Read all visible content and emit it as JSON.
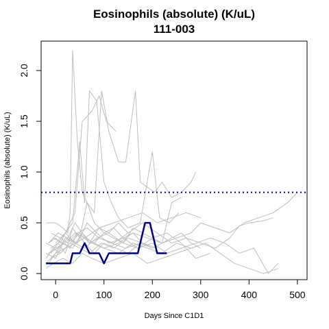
{
  "chart_data": {
    "type": "line",
    "title": "Eosinophils (absolute) (K/uL)",
    "subtitle": "111-003",
    "xlabel": "Days Since C1D1",
    "ylabel": "Eosinophils (absolute) (K/uL)",
    "xlim": [
      -30,
      520
    ],
    "ylim": [
      -0.06,
      2.29
    ],
    "x_ticks": [
      0,
      100,
      200,
      300,
      400,
      500
    ],
    "x_tick_labels": [
      "0",
      "100",
      "200",
      "300",
      "400",
      "500"
    ],
    "y_ticks": [
      0.0,
      0.5,
      1.0,
      1.5,
      2.0
    ],
    "y_tick_labels": [
      "0.0",
      "0.5",
      "1.0",
      "1.5",
      "2.0"
    ],
    "reference_line": {
      "y": 0.8,
      "style": "dotted",
      "color": "#000080"
    },
    "highlight_color": "#000080",
    "background_color": "#bebebe",
    "highlight_series": {
      "x": [
        -20,
        30,
        35,
        50,
        60,
        70,
        90,
        100,
        110,
        140,
        170,
        185,
        195,
        210,
        230
      ],
      "values": [
        0.1,
        0.1,
        0.2,
        0.2,
        0.3,
        0.2,
        0.2,
        0.1,
        0.2,
        0.2,
        0.2,
        0.5,
        0.5,
        0.2,
        0.2
      ]
    },
    "background_series": [
      {
        "x": [
          -20,
          0,
          15,
          25,
          30,
          35,
          45,
          55,
          65,
          80,
          95,
          110,
          130,
          145,
          165,
          175,
          190,
          205,
          220,
          240,
          260,
          280,
          290
        ],
        "values": [
          0.5,
          0.5,
          0.45,
          0.4,
          0.6,
          2.2,
          1.3,
          0.8,
          0.7,
          0.6,
          1.8,
          1.4,
          1.1,
          1.1,
          1.8,
          0.9,
          0.85,
          0.8,
          0.9,
          0.75,
          0.8,
          0.9,
          1.0
        ]
      },
      {
        "x": [
          -10,
          5,
          20,
          35,
          50,
          60,
          70,
          85,
          100,
          115,
          130,
          150,
          175,
          200,
          215,
          235,
          255
        ],
        "values": [
          0.2,
          0.3,
          0.4,
          0.5,
          1.3,
          0.7,
          1.8,
          1.7,
          0.9,
          0.7,
          0.55,
          0.45,
          0.5,
          1.2,
          0.55,
          0.5,
          0.6
        ]
      },
      {
        "x": [
          -15,
          0,
          10,
          25,
          40,
          55,
          75,
          90,
          105,
          125
        ],
        "values": [
          0.3,
          0.35,
          0.3,
          0.45,
          0.6,
          1.5,
          1.6,
          1.75,
          1.5,
          1.4
        ]
      },
      {
        "x": [
          -20,
          0,
          20,
          40,
          60,
          80,
          100,
          130,
          160,
          190,
          220,
          250,
          280,
          300,
          330,
          360,
          390,
          420,
          450,
          480,
          500
        ],
        "values": [
          0.3,
          0.25,
          0.3,
          0.4,
          0.35,
          0.3,
          0.25,
          0.3,
          0.4,
          0.35,
          0.3,
          0.35,
          0.4,
          0.5,
          0.45,
          0.4,
          0.5,
          0.55,
          0.6,
          0.7,
          0.8
        ]
      },
      {
        "x": [
          -15,
          5,
          25,
          45,
          65,
          85,
          110,
          140,
          170,
          200,
          230,
          260,
          290,
          320,
          350,
          380,
          410,
          440,
          460
        ],
        "values": [
          0.2,
          0.25,
          0.35,
          0.3,
          0.5,
          0.4,
          0.3,
          0.35,
          0.25,
          0.3,
          0.2,
          0.25,
          0.3,
          0.35,
          0.3,
          0.2,
          0.25,
          0.0,
          0.1
        ]
      },
      {
        "x": [
          -10,
          10,
          30,
          50,
          70,
          90,
          120,
          150,
          180,
          210,
          240,
          270,
          300,
          330,
          360,
          380,
          400,
          430,
          450
        ],
        "values": [
          0.15,
          0.2,
          0.3,
          0.4,
          0.3,
          0.35,
          0.3,
          0.4,
          0.5,
          0.4,
          0.3,
          0.35,
          0.3,
          0.25,
          0.35,
          0.47,
          0.5,
          0.52,
          0.55
        ]
      },
      {
        "x": [
          -20,
          0,
          20,
          40,
          60,
          90,
          120,
          150,
          180,
          210,
          240,
          270,
          300
        ],
        "values": [
          0.1,
          0.2,
          0.25,
          0.3,
          0.35,
          0.45,
          0.5,
          0.55,
          0.6,
          0.5,
          0.55,
          0.6,
          0.55
        ]
      },
      {
        "x": [
          -15,
          5,
          25,
          40,
          55,
          70,
          90,
          110,
          130,
          150
        ],
        "values": [
          0.3,
          0.4,
          0.35,
          0.5,
          0.4,
          0.3,
          0.45,
          0.4,
          0.5,
          0.4
        ]
      },
      {
        "x": [
          -20,
          -5,
          10,
          30,
          50,
          70,
          95,
          120,
          150,
          180,
          210
        ],
        "values": [
          0.15,
          0.25,
          0.2,
          0.3,
          0.25,
          0.2,
          0.3,
          0.25,
          0.35,
          0.3,
          0.25
        ]
      },
      {
        "x": [
          -10,
          5,
          20,
          35,
          50,
          65,
          80,
          100,
          120,
          140,
          160,
          180,
          200,
          220,
          240,
          260
        ],
        "values": [
          0.25,
          0.3,
          0.2,
          0.45,
          0.35,
          0.7,
          0.5,
          0.4,
          0.35,
          0.3,
          0.45,
          0.4,
          0.35,
          0.3,
          0.7,
          0.75
        ]
      },
      {
        "x": [
          -5,
          15,
          35,
          55,
          75,
          100,
          130,
          160,
          190,
          220,
          250,
          280
        ],
        "values": [
          0.35,
          0.3,
          0.25,
          0.4,
          0.3,
          0.25,
          0.2,
          0.3,
          0.25,
          0.2,
          0.3,
          0.25
        ]
      },
      {
        "x": [
          -20,
          0,
          15,
          30,
          45,
          60,
          80,
          100,
          125,
          150,
          175,
          200
        ],
        "values": [
          0.2,
          0.15,
          0.3,
          0.25,
          0.4,
          0.3,
          0.2,
          0.3,
          0.25,
          0.2,
          0.3,
          0.25
        ]
      },
      {
        "x": [
          -15,
          0,
          20,
          40,
          60,
          85,
          110,
          140,
          170,
          200,
          230,
          260,
          290,
          320
        ],
        "values": [
          0.1,
          0.2,
          0.35,
          0.3,
          0.25,
          0.35,
          0.4,
          0.3,
          0.25,
          0.35,
          0.4,
          0.3,
          0.15,
          0.2
        ]
      },
      {
        "x": [
          -10,
          10,
          25,
          45,
          65,
          90,
          115,
          145,
          175
        ],
        "values": [
          0.4,
          0.35,
          0.3,
          0.4,
          0.45,
          0.35,
          0.3,
          0.25,
          0.3
        ]
      },
      {
        "x": [
          -20,
          -5,
          15,
          35,
          55,
          75,
          100,
          130,
          160,
          190,
          220,
          250,
          280,
          310,
          340,
          370,
          400,
          430,
          460
        ],
        "values": [
          0.05,
          0.1,
          0.15,
          0.1,
          0.2,
          0.15,
          0.1,
          0.15,
          0.2,
          0.1,
          0.15,
          0.2,
          0.25,
          0.3,
          0.2,
          0.1,
          0.05,
          0.0,
          0.05
        ]
      },
      {
        "x": [
          0,
          20,
          40,
          60,
          80,
          100,
          120,
          140,
          160,
          180,
          200,
          220,
          240,
          260,
          280,
          300
        ],
        "values": [
          0.3,
          0.4,
          0.3,
          0.35,
          0.3,
          0.4,
          0.45,
          0.35,
          0.4,
          0.3,
          0.25,
          0.3,
          0.35,
          0.4,
          0.3,
          0.25
        ]
      }
    ]
  }
}
